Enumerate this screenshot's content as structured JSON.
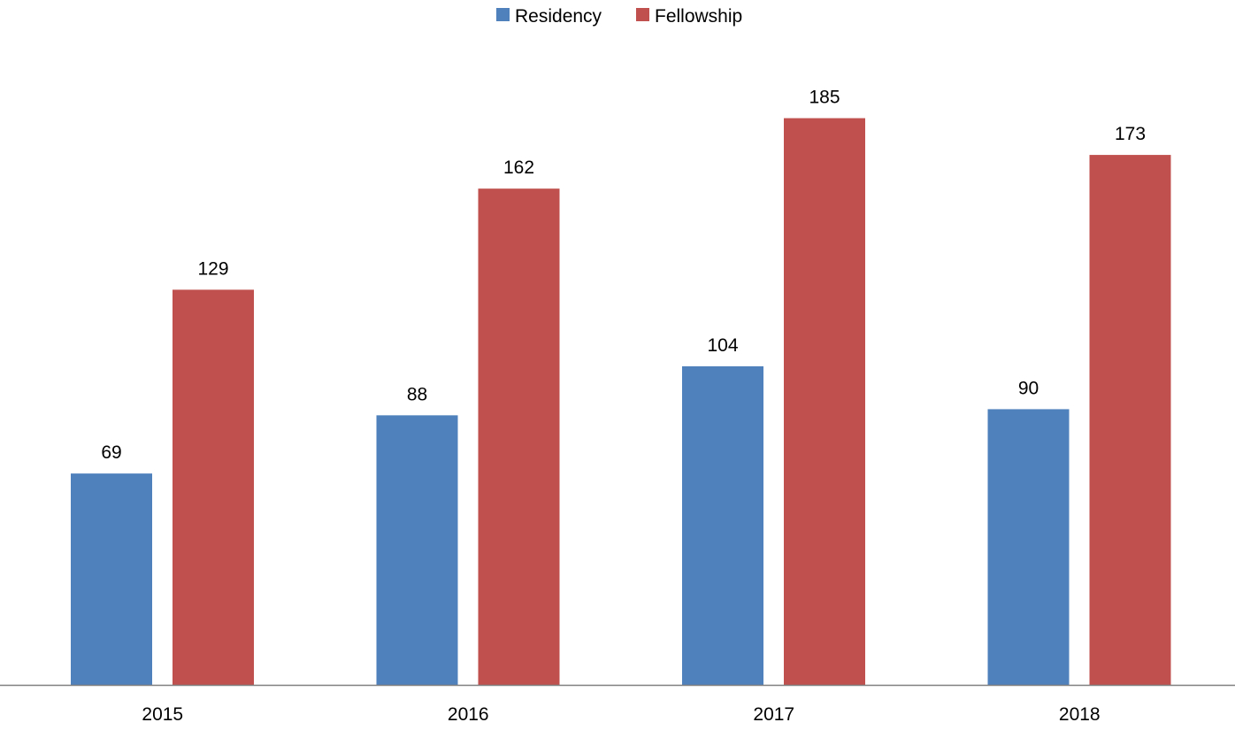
{
  "chart_data": {
    "type": "bar",
    "categories": [
      "2015",
      "2016",
      "2017",
      "2018"
    ],
    "series": [
      {
        "name": "Residency",
        "color": "#4F81BD",
        "values": [
          69,
          88,
          104,
          90
        ]
      },
      {
        "name": "Fellowship",
        "color": "#C0504D",
        "values": [
          129,
          162,
          185,
          173
        ]
      }
    ],
    "ylim": [
      0,
      210
    ],
    "grid": false,
    "legend_position": "top-center",
    "data_labels": true,
    "axis_color": "#808080"
  }
}
